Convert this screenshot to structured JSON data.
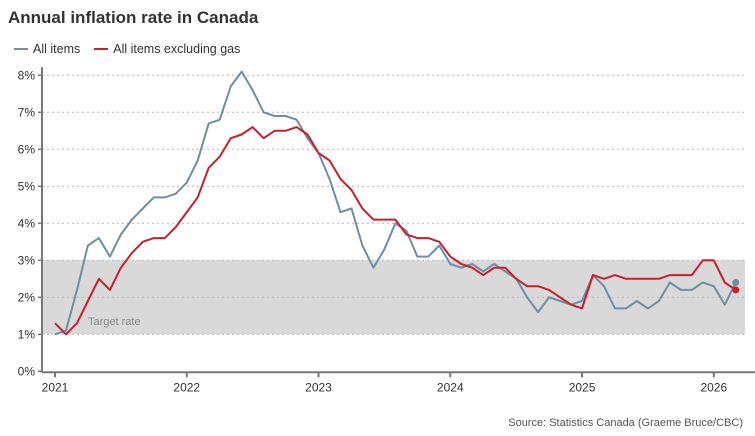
{
  "chart_data": {
    "type": "line",
    "title": "Annual inflation rate in Canada",
    "source": "Source: Statistics Canada (Graeme Bruce/CBC)",
    "x_start": "2021-01",
    "x_end": "2026-03",
    "frequency": "monthly",
    "x_tick_labels": [
      "2021",
      "2022",
      "2023",
      "2024",
      "2025",
      "2026"
    ],
    "y_tick_labels": [
      "0%",
      "1%",
      "2%",
      "3%",
      "4%",
      "5%",
      "6%",
      "7%",
      "8%"
    ],
    "ylim": [
      0,
      8
    ],
    "y_unit": "%",
    "grid": "horizontal dotted",
    "legend": "top-left",
    "band": {
      "label": "Target rate",
      "from": 1,
      "to": 3,
      "color": "#d9d9d9"
    },
    "series": [
      {
        "name": "All items",
        "color": "#6e8ea3",
        "values": [
          1.0,
          1.1,
          2.2,
          3.4,
          3.6,
          3.1,
          3.7,
          4.1,
          4.4,
          4.7,
          4.7,
          4.8,
          5.1,
          5.7,
          6.7,
          6.8,
          7.7,
          8.1,
          7.6,
          7.0,
          6.9,
          6.9,
          6.8,
          6.3,
          5.9,
          5.2,
          4.3,
          4.4,
          3.4,
          2.8,
          3.3,
          4.0,
          3.8,
          3.1,
          3.1,
          3.4,
          2.9,
          2.8,
          2.9,
          2.7,
          2.9,
          2.7,
          2.5,
          2.0,
          1.6,
          2.0,
          1.9,
          1.8,
          1.9,
          2.6,
          2.3,
          1.7,
          1.7,
          1.9,
          1.7,
          1.9,
          2.4,
          2.2,
          2.2,
          2.4,
          2.3,
          1.8,
          2.4
        ]
      },
      {
        "name": "All items excluding gas",
        "color": "#c8202b",
        "values": [
          1.3,
          1.0,
          1.3,
          1.9,
          2.5,
          2.2,
          2.8,
          3.2,
          3.5,
          3.6,
          3.6,
          3.9,
          4.3,
          4.7,
          5.5,
          5.8,
          6.3,
          6.4,
          6.6,
          6.3,
          6.5,
          6.5,
          6.6,
          6.4,
          5.9,
          5.7,
          5.2,
          4.9,
          4.4,
          4.1,
          4.1,
          4.1,
          3.7,
          3.6,
          3.6,
          3.5,
          3.1,
          2.9,
          2.8,
          2.6,
          2.8,
          2.8,
          2.5,
          2.3,
          2.3,
          2.2,
          2.0,
          1.8,
          1.7,
          2.6,
          2.5,
          2.6,
          2.5,
          2.5,
          2.5,
          2.5,
          2.6,
          2.6,
          2.6,
          3.0,
          3.0,
          2.4,
          2.2
        ]
      }
    ]
  }
}
